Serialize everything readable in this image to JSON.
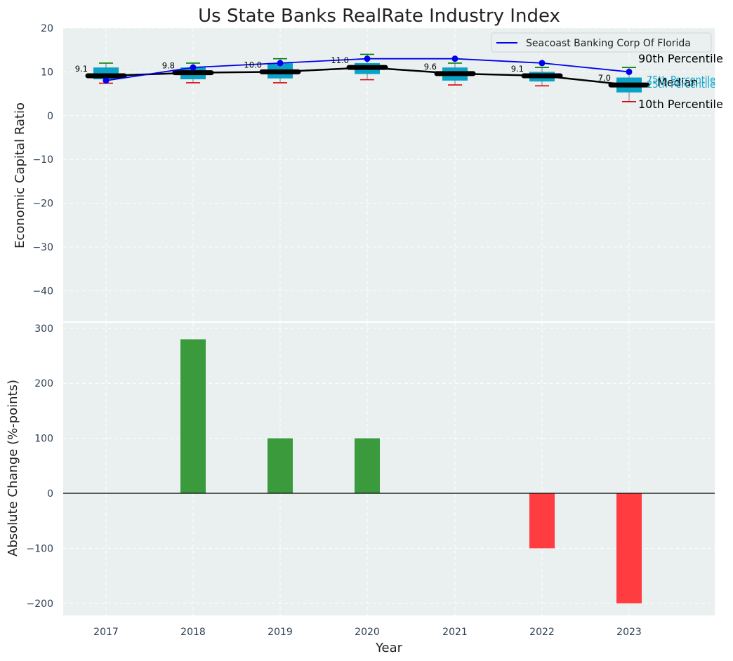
{
  "colors": {
    "panel_bg": "#eaeff0",
    "company_line": "#0000ee",
    "median_line": "#000000",
    "box_fill": "#0aa3c7",
    "whisker_top": "#008000",
    "whisker_bottom": "#e00000",
    "bar_positive": "#3a9a3c",
    "bar_negative": "#ff3c3f",
    "quartile_label": "#0aa3c7"
  },
  "chart_data": [
    {
      "type": "box_line",
      "title": "Us State Banks RealRate Industry Index",
      "ylabel": "Economic Capital Ratio",
      "ylim": [
        -47,
        20
      ],
      "yticks": [
        20,
        10,
        0,
        -10,
        -20,
        -30,
        -40
      ],
      "ytick_labels": [
        "20",
        "10",
        "0",
        "−10",
        "−20",
        "−30",
        "−40"
      ],
      "categories": [
        "2017",
        "2018",
        "2019",
        "2020",
        "2021",
        "2022",
        "2023"
      ],
      "percentiles": {
        "p10": [
          7.4,
          7.5,
          7.5,
          8.2,
          7.0,
          6.8,
          3.2
        ],
        "p25": [
          8.3,
          8.3,
          8.5,
          9.5,
          8.0,
          7.8,
          5.3
        ],
        "median": [
          9.1,
          9.8,
          10.0,
          11.0,
          9.6,
          9.1,
          7.0
        ],
        "p75": [
          11.0,
          11.0,
          12.0,
          12.0,
          11.0,
          10.0,
          8.7
        ],
        "p90": [
          12.0,
          12.0,
          13.0,
          14.0,
          12.0,
          11.0,
          11.0
        ]
      },
      "median_labels": [
        "9.1",
        "9.8",
        "10.0",
        "11.0",
        "9.6",
        "9.1",
        "7.0"
      ],
      "series": [
        {
          "name": "Seacoast Banking Corp Of Florida",
          "values": [
            8.0,
            11.0,
            12.0,
            13.0,
            13.0,
            12.0,
            10.0
          ]
        }
      ],
      "legend": {
        "label": "Seacoast Banking Corp Of Florida",
        "placement": "top-right"
      },
      "annotations": {
        "p90": "90th Percentile",
        "p75": "75th Percentile",
        "median": "Median",
        "p25": "25th Percentile",
        "p10": "10th Percentile"
      }
    },
    {
      "type": "bar",
      "ylabel": "Absolute Change (%-points)",
      "xlabel": "Year",
      "ylim": [
        -222,
        310
      ],
      "yticks": [
        300,
        200,
        100,
        0,
        -100,
        -200
      ],
      "ytick_labels": [
        "300",
        "200",
        "100",
        "0",
        "−100",
        "−200"
      ],
      "categories": [
        "2017",
        "2018",
        "2019",
        "2020",
        "2021",
        "2022",
        "2023"
      ],
      "values": [
        0,
        280,
        100,
        100,
        0,
        -100,
        -200
      ]
    }
  ]
}
